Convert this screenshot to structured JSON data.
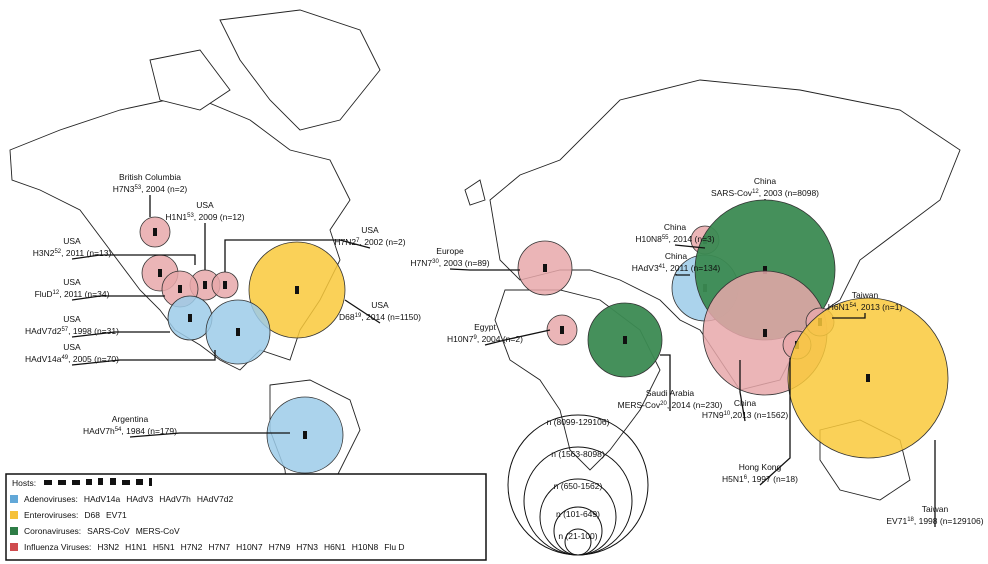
{
  "outbreaks": [
    {
      "place": "British Columbia",
      "virus": "H7N3",
      "ref": "53",
      "detail": ", 2004 (n=2)",
      "group": "influenza"
    },
    {
      "place": "USA",
      "virus": "H1N1",
      "ref": "53",
      "detail": ", 2009 (n=12)",
      "group": "influenza"
    },
    {
      "place": "USA",
      "virus": "H7N2",
      "ref": "7",
      "detail": ", 2002 (n=2)",
      "group": "influenza"
    },
    {
      "place": "USA",
      "virus": "H3N2",
      "ref": "52",
      "detail": ", 2011 (n=13)",
      "group": "influenza"
    },
    {
      "place": "USA",
      "virus": "FluD",
      "ref": "12",
      "detail": ", 2011 (n=34)",
      "group": "influenza"
    },
    {
      "place": "USA",
      "virus": "D68",
      "ref": "19",
      "detail": ", 2014 (n=1150)",
      "group": "enterovirus"
    },
    {
      "place": "USA",
      "virus": "HAdV7d2",
      "ref": "57",
      "detail": ", 1998 (n=31)",
      "group": "adenovirus"
    },
    {
      "place": "USA",
      "virus": "HAdV14a",
      "ref": "49",
      "detail": ", 2005 (n=70)",
      "group": "adenovirus"
    },
    {
      "place": "Argentina",
      "virus": "HAdV7h",
      "ref": "54",
      "detail": ", 1984 (n=179)",
      "group": "adenovirus"
    },
    {
      "place": "Europe",
      "virus": "H7N7",
      "ref": "30",
      "detail": ", 2003 (n=89)",
      "group": "influenza"
    },
    {
      "place": "Egypt",
      "virus": "H10N7",
      "ref": "9",
      "detail": ", 2004 (n=2)",
      "group": "influenza"
    },
    {
      "place": "Saudi Arabia",
      "virus": "MERS-Cov",
      "ref": "20",
      "detail": ", 2014 (n=230)",
      "group": "coronavirus"
    },
    {
      "place": "China",
      "virus": "H10N8",
      "ref": "55",
      "detail": ", 2014 (n=3)",
      "group": "influenza"
    },
    {
      "place": "China",
      "virus": "HAdV3",
      "ref": "41",
      "detail": ", 2011 (n=134)",
      "group": "adenovirus"
    },
    {
      "place": "China",
      "virus": "SARS-Cov",
      "ref": "12",
      "detail": ", 2003 (n=8098)",
      "group": "coronavirus"
    },
    {
      "place": "China",
      "virus": "H7N9",
      "ref": "10",
      "detail": ",2013 (n=1562)",
      "group": "influenza"
    },
    {
      "place": "Taiwan",
      "virus": "H6N1",
      "ref": "54",
      "detail": ", 2013 (n=1)",
      "group": "influenza"
    },
    {
      "place": "Hong Kong",
      "virus": "H5N1",
      "ref": "6",
      "detail": ", 1997 (n=18)",
      "group": "influenza"
    },
    {
      "place": "Taiwan",
      "virus": "EV71",
      "ref": "18",
      "detail": ", 1998 (n=129106)",
      "group": "enterovirus"
    }
  ],
  "size_legend": [
    "n (8099-129106)",
    "n (1563-8098)",
    "n (650-1562)",
    "n (101-649)",
    "n (21-100)"
  ],
  "legend": {
    "hosts_title": "Hosts:",
    "groups": [
      {
        "id": "adenovirus",
        "name": "Adenoviruses:",
        "color": "#62a8d8",
        "members": [
          "HAdV14a",
          "HAdV3",
          "HAdV7h",
          "HAdV7d2"
        ]
      },
      {
        "id": "enterovirus",
        "name": "Enteroviruses:",
        "color": "#f5c13a",
        "members": [
          "D68",
          "EV71"
        ]
      },
      {
        "id": "coronavirus",
        "name": "Coronaviruses:",
        "color": "#2e7d46",
        "members": [
          "SARS-CoV",
          "MERS-CoV"
        ]
      },
      {
        "id": "influenza",
        "name": "Influenza Viruses:",
        "color": "#cf4b4e",
        "members": [
          "H3N2",
          "H1N1",
          "H5N1",
          "H7N2",
          "H7N7",
          "H10N7",
          "H7N9",
          "H7N3",
          "H6N1",
          "H10N8",
          "Flu D"
        ]
      }
    ]
  }
}
